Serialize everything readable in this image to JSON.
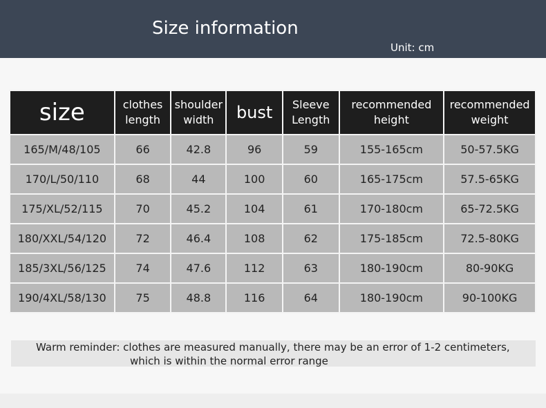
{
  "header": {
    "title": "Size information",
    "unit": "Unit: cm"
  },
  "table": {
    "columns": [
      "size",
      "clothes length",
      "shoulder width",
      "bust",
      "Sleeve Length",
      "recommended height",
      "recommended weight"
    ],
    "rows": [
      [
        "165/M/48/105",
        "66",
        "42.8",
        "96",
        "59",
        "155-165cm",
        "50-57.5KG"
      ],
      [
        "170/L/50/110",
        "68",
        "44",
        "100",
        "60",
        "165-175cm",
        "57.5-65KG"
      ],
      [
        "175/XL/52/115",
        "70",
        "45.2",
        "104",
        "61",
        "170-180cm",
        "65-72.5KG"
      ],
      [
        "180/XXL/54/120",
        "72",
        "46.4",
        "108",
        "62",
        "175-185cm",
        "72.5-80KG"
      ],
      [
        "185/3XL/56/125",
        "74",
        "47.6",
        "112",
        "63",
        "180-190cm",
        "80-90KG"
      ],
      [
        "190/4XL/58/130",
        "75",
        "48.8",
        "116",
        "64",
        "180-190cm",
        "90-100KG"
      ]
    ]
  },
  "note": {
    "line1": "Warm reminder: clothes are measured manually, there may be an error of 1-2 centimeters,",
    "line2": "which is within the normal error range"
  }
}
